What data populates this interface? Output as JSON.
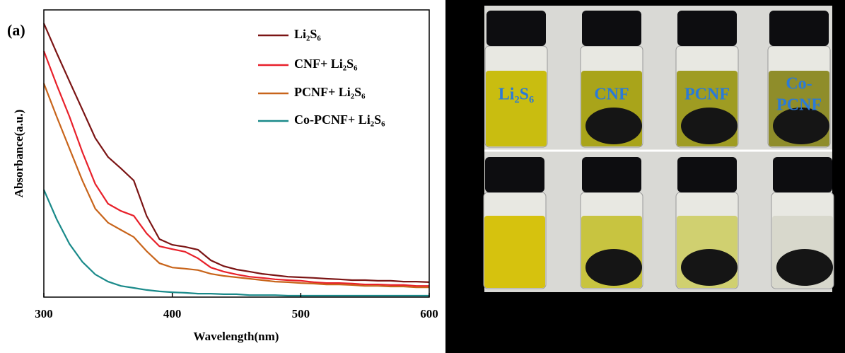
{
  "chart_data": {
    "type": "line",
    "panel_label": "(a)",
    "x_label": "Wavelength(nm)",
    "y_label": "Absorbance(a.u.)",
    "x": [
      300,
      310,
      320,
      330,
      340,
      350,
      360,
      370,
      380,
      390,
      400,
      410,
      420,
      430,
      440,
      450,
      460,
      470,
      480,
      490,
      500,
      510,
      520,
      530,
      540,
      550,
      560,
      570,
      580,
      590,
      600
    ],
    "xlim": [
      300,
      600
    ],
    "xticks": [
      300,
      400,
      500,
      600
    ],
    "ylim": [
      0,
      100
    ],
    "legend": "upper right",
    "series": [
      {
        "name": "Li₂S₆",
        "color": "#7b1414",
        "values": [
          95.3,
          85.0,
          75.1,
          65.3,
          55.4,
          48.8,
          44.8,
          40.6,
          28.3,
          20.2,
          18.2,
          17.5,
          16.5,
          12.8,
          10.8,
          9.6,
          8.9,
          8.1,
          7.6,
          7.1,
          6.9,
          6.7,
          6.4,
          6.2,
          5.9,
          5.9,
          5.7,
          5.7,
          5.4,
          5.4,
          5.2
        ]
      },
      {
        "name": "CNF+ Li₂S₆",
        "color": "#e8202a",
        "values": [
          85.7,
          73.9,
          62.8,
          50.5,
          39.4,
          32.5,
          30.0,
          28.3,
          22.2,
          17.7,
          16.7,
          15.8,
          13.5,
          10.3,
          8.9,
          7.9,
          7.1,
          6.7,
          6.2,
          5.9,
          5.7,
          5.2,
          4.9,
          4.9,
          4.7,
          4.4,
          4.4,
          4.2,
          4.2,
          3.9,
          3.9
        ]
      },
      {
        "name": "PCNF+ Li₂S₆",
        "color": "#c8641a",
        "values": [
          74.4,
          62.8,
          51.7,
          40.6,
          30.8,
          25.9,
          23.4,
          20.9,
          16.0,
          11.8,
          10.3,
          9.9,
          9.4,
          8.1,
          7.4,
          6.9,
          6.4,
          5.9,
          5.4,
          5.2,
          4.9,
          4.7,
          4.4,
          4.4,
          4.2,
          3.9,
          3.9,
          3.7,
          3.7,
          3.4,
          3.4
        ]
      },
      {
        "name": "Co-PCNF+ Li₂S₆",
        "color": "#1a8a8a",
        "values": [
          37.4,
          27.1,
          18.5,
          12.3,
          7.9,
          5.4,
          3.9,
          3.2,
          2.5,
          2.0,
          1.7,
          1.5,
          1.2,
          1.2,
          1.0,
          1.0,
          0.7,
          0.7,
          0.7,
          0.5,
          0.5,
          0.5,
          0.5,
          0.5,
          0.5,
          0.5,
          0.5,
          0.5,
          0.5,
          0.5,
          0.5
        ]
      }
    ]
  },
  "photo": {
    "labels": [
      [
        "Li₂S₆"
      ],
      [
        "CNF"
      ],
      [
        "PCNF"
      ],
      [
        "Co-",
        "PCNF"
      ]
    ]
  }
}
